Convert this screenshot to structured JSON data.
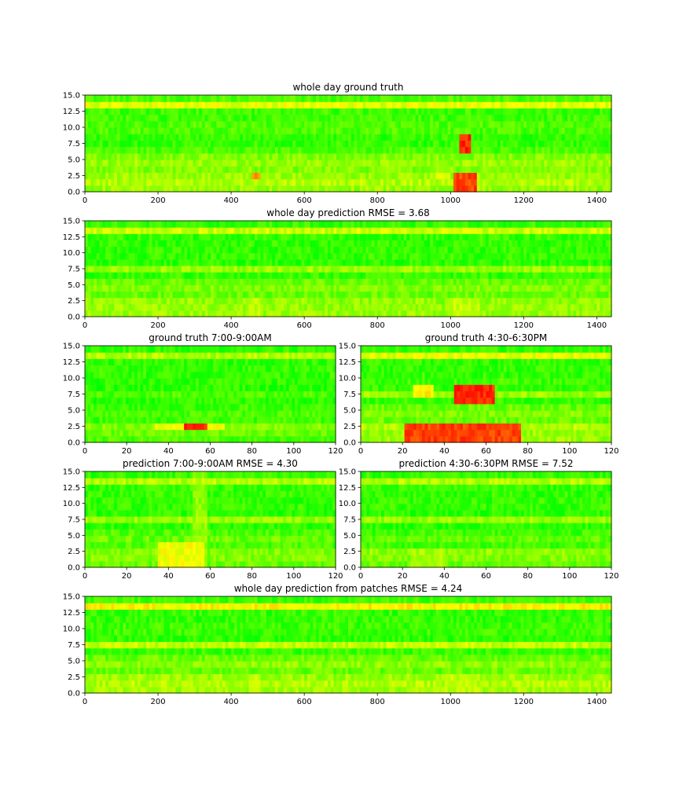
{
  "figure": {
    "background": "#ffffff"
  },
  "colormap": {
    "low": "#00ff00",
    "mid": "#ffff00",
    "high": "#ff0000",
    "max_value": 15
  },
  "chart_data": [
    {
      "id": "whole-day-ground-truth",
      "type": "heatmap",
      "title": "whole day ground truth",
      "xlim": [
        0,
        1440
      ],
      "ylim": [
        0,
        15
      ],
      "xticks": [
        0,
        200,
        400,
        600,
        800,
        1000,
        1200,
        1400
      ],
      "yticks": [
        0.0,
        2.5,
        5.0,
        7.5,
        10.0,
        12.5,
        15.0
      ],
      "ytick_labels": [
        "0.0",
        "2.5",
        "5.0",
        "7.5",
        "10.0",
        "12.5",
        "15.0"
      ],
      "base_level": 0.2,
      "rows": 15,
      "row_levels": [
        0.3,
        0.35,
        0.3,
        0.25,
        0.3,
        0.25,
        0.15,
        0.1,
        0.1,
        0.15,
        0.15,
        0.12,
        0.12,
        0.45,
        0.15
      ],
      "hot_spots": [
        {
          "x": [
            1030,
            1055
          ],
          "y": [
            6.5,
            8.8
          ],
          "level": 1.0
        },
        {
          "x": [
            1010,
            1070
          ],
          "y": [
            0.0,
            3.0
          ],
          "level": 0.95
        },
        {
          "x": [
            460,
            480
          ],
          "y": [
            2.0,
            3.0
          ],
          "level": 0.8
        },
        {
          "x": [
            960,
            1000
          ],
          "y": [
            2.0,
            3.0
          ],
          "level": 0.5
        }
      ]
    },
    {
      "id": "whole-day-prediction",
      "type": "heatmap",
      "title": "whole day prediction RMSE = 3.68",
      "xlim": [
        0,
        1440
      ],
      "ylim": [
        0,
        15
      ],
      "xticks": [
        0,
        200,
        400,
        600,
        800,
        1000,
        1200,
        1400
      ],
      "yticks": [
        0.0,
        2.5,
        5.0,
        7.5,
        10.0,
        12.5,
        15.0
      ],
      "ytick_labels": [
        "0.0",
        "2.5",
        "5.0",
        "7.5",
        "10.0",
        "12.5",
        "15.0"
      ],
      "base_level": 0.15,
      "rows": 15,
      "row_levels": [
        0.3,
        0.3,
        0.28,
        0.2,
        0.25,
        0.2,
        0.1,
        0.3,
        0.08,
        0.1,
        0.1,
        0.1,
        0.1,
        0.4,
        0.1
      ],
      "hot_spots": [
        {
          "x": [
            450,
            480
          ],
          "y": [
            0.0,
            3.0
          ],
          "level": 0.45
        },
        {
          "x": [
            1000,
            1080
          ],
          "y": [
            0.0,
            3.0
          ],
          "level": 0.45
        }
      ]
    },
    {
      "id": "ground-truth-am",
      "type": "heatmap",
      "title": "ground truth 7:00-9:00AM",
      "xlim": [
        0,
        120
      ],
      "ylim": [
        0,
        15
      ],
      "xticks": [
        0,
        20,
        40,
        60,
        80,
        100,
        120
      ],
      "yticks": [
        0.0,
        2.5,
        5.0,
        7.5,
        10.0,
        12.5,
        15.0
      ],
      "ytick_labels": [
        "0.0",
        "2.5",
        "5.0",
        "7.5",
        "10.0",
        "12.5",
        "15.0"
      ],
      "base_level": 0.1,
      "rows": 15,
      "row_levels": [
        0.15,
        0.2,
        0.25,
        0.12,
        0.15,
        0.12,
        0.08,
        0.15,
        0.08,
        0.1,
        0.1,
        0.1,
        0.1,
        0.35,
        0.1
      ],
      "hot_spots": [
        {
          "x": [
            48,
            58
          ],
          "y": [
            2.0,
            3.0
          ],
          "level": 1.0
        },
        {
          "x": [
            34,
            66
          ],
          "y": [
            2.0,
            3.0
          ],
          "level": 0.55
        }
      ]
    },
    {
      "id": "ground-truth-pm",
      "type": "heatmap",
      "title": "ground truth 4:30-6:30PM",
      "xlim": [
        0,
        120
      ],
      "ylim": [
        0,
        15
      ],
      "xticks": [
        0,
        20,
        40,
        60,
        80,
        100,
        120
      ],
      "yticks": [
        0.0,
        2.5,
        5.0,
        7.5,
        10.0,
        12.5,
        15.0
      ],
      "ytick_labels": [
        "0.0",
        "2.5",
        "5.0",
        "7.5",
        "10.0",
        "12.5",
        "15.0"
      ],
      "base_level": 0.15,
      "rows": 15,
      "row_levels": [
        0.3,
        0.3,
        0.35,
        0.2,
        0.25,
        0.2,
        0.1,
        0.3,
        0.1,
        0.12,
        0.1,
        0.1,
        0.1,
        0.45,
        0.1
      ],
      "hot_spots": [
        {
          "x": [
            46,
            64
          ],
          "y": [
            6.0,
            9.0
          ],
          "level": 1.0
        },
        {
          "x": [
            26,
            34
          ],
          "y": [
            7.0,
            9.0
          ],
          "level": 0.6
        },
        {
          "x": [
            22,
            76
          ],
          "y": [
            0.0,
            3.0
          ],
          "level": 0.95
        }
      ]
    },
    {
      "id": "prediction-am",
      "type": "heatmap",
      "title": "prediction 7:00-9:00AM RMSE = 4.30",
      "xlim": [
        0,
        120
      ],
      "ylim": [
        0,
        15
      ],
      "xticks": [
        0,
        20,
        40,
        60,
        80,
        100,
        120
      ],
      "yticks": [
        0.0,
        2.5,
        5.0,
        7.5,
        10.0,
        12.5,
        15.0
      ],
      "ytick_labels": [
        "0.0",
        "2.5",
        "5.0",
        "7.5",
        "10.0",
        "12.5",
        "15.0"
      ],
      "base_level": 0.12,
      "rows": 15,
      "row_levels": [
        0.2,
        0.25,
        0.25,
        0.15,
        0.2,
        0.15,
        0.08,
        0.3,
        0.08,
        0.1,
        0.1,
        0.1,
        0.1,
        0.35,
        0.1
      ],
      "hot_spots": [
        {
          "x": [
            36,
            56
          ],
          "y": [
            0.0,
            4.0
          ],
          "level": 0.55
        },
        {
          "x": [
            52,
            58
          ],
          "y": [
            0.0,
            15.0
          ],
          "level": 0.35
        }
      ]
    },
    {
      "id": "prediction-pm",
      "type": "heatmap",
      "title": "prediction 4:30-6:30PM RMSE = 7.52",
      "xlim": [
        0,
        120
      ],
      "ylim": [
        0,
        15
      ],
      "xticks": [
        0,
        20,
        40,
        60,
        80,
        100,
        120
      ],
      "yticks": [
        0.0,
        2.5,
        5.0,
        7.5,
        10.0,
        12.5,
        15.0
      ],
      "ytick_labels": [
        "0.0",
        "2.5",
        "5.0",
        "7.5",
        "10.0",
        "12.5",
        "15.0"
      ],
      "base_level": 0.1,
      "rows": 15,
      "row_levels": [
        0.2,
        0.25,
        0.28,
        0.12,
        0.18,
        0.12,
        0.08,
        0.3,
        0.08,
        0.1,
        0.1,
        0.1,
        0.1,
        0.35,
        0.1
      ],
      "hot_spots": [
        {
          "x": [
            24,
            40
          ],
          "y": [
            0.0,
            3.0
          ],
          "level": 0.4
        }
      ]
    },
    {
      "id": "whole-day-prediction-patches",
      "type": "heatmap",
      "title": "whole day prediction from patches RMSE = 4.24",
      "xlim": [
        0,
        1440
      ],
      "ylim": [
        0,
        15
      ],
      "xticks": [
        0,
        200,
        400,
        600,
        800,
        1000,
        1200,
        1400
      ],
      "yticks": [
        0.0,
        2.5,
        5.0,
        7.5,
        10.0,
        12.5,
        15.0
      ],
      "ytick_labels": [
        "0.0",
        "2.5",
        "5.0",
        "7.5",
        "10.0",
        "12.5",
        "15.0"
      ],
      "base_level": 0.2,
      "rows": 15,
      "row_levels": [
        0.32,
        0.35,
        0.3,
        0.2,
        0.28,
        0.2,
        0.1,
        0.38,
        0.08,
        0.12,
        0.12,
        0.1,
        0.1,
        0.5,
        0.12
      ],
      "hot_spots": [
        {
          "x": [
            450,
            480
          ],
          "y": [
            0.0,
            3.0
          ],
          "level": 0.5
        },
        {
          "x": [
            990,
            1080
          ],
          "y": [
            0.0,
            3.0
          ],
          "level": 0.45
        }
      ]
    }
  ]
}
